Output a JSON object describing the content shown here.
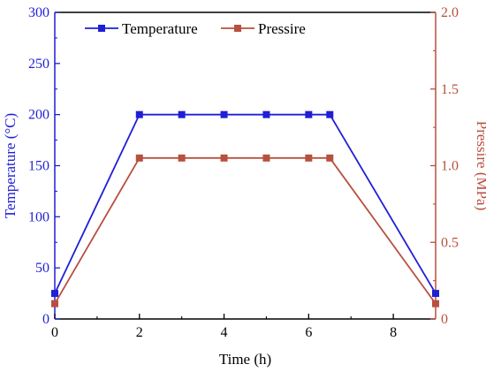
{
  "colors": {
    "temperature": "#1f1fd6",
    "pressure": "#b8503f",
    "axis": "#000000"
  },
  "chart_data": {
    "type": "line",
    "xlabel": "Time (h)",
    "ylabel_left": "Temperature (°C)",
    "ylabel_right": "Pressire (MPa)",
    "xlim": [
      0,
      9
    ],
    "ylim_left": [
      0,
      300
    ],
    "ylim_right": [
      0,
      2.0
    ],
    "x_ticks": [
      "0",
      "2",
      "4",
      "6",
      "8"
    ],
    "y_left_ticks": [
      "0",
      "50",
      "100",
      "150",
      "200",
      "250",
      "300"
    ],
    "y_right_ticks": [
      "0",
      "0.5",
      "1.0",
      "1.5",
      "2.0"
    ],
    "legend_position": "top-left",
    "grid": false,
    "marker": "square",
    "series": [
      {
        "name": "Temperature",
        "axis": "left",
        "x": [
          0,
          2,
          3,
          4,
          5,
          6,
          6.5,
          9
        ],
        "y": [
          25,
          200,
          200,
          200,
          200,
          200,
          200,
          25
        ]
      },
      {
        "name": "Pressire",
        "axis": "right",
        "x": [
          0,
          2,
          3,
          4,
          5,
          6,
          6.5,
          9
        ],
        "y": [
          0.1,
          1.05,
          1.05,
          1.05,
          1.05,
          1.05,
          1.05,
          0.1
        ]
      }
    ]
  }
}
